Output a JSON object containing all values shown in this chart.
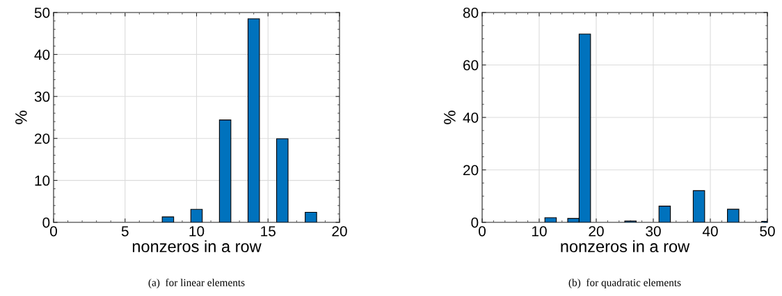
{
  "chart_data": [
    {
      "type": "bar",
      "xlabel": "nonzeros in a row",
      "ylabel": "%",
      "x": [
        8,
        10,
        12,
        14,
        16,
        18
      ],
      "series": [
        {
          "color": "#0072bd",
          "values": [
            1.3,
            3.1,
            24.4,
            48.5,
            19.9,
            2.4
          ]
        }
      ],
      "xlim": [
        0,
        20
      ],
      "xticks": [
        0,
        5,
        10,
        15,
        20
      ],
      "ylim": [
        0,
        50
      ],
      "yticks": [
        0,
        10,
        20,
        30,
        40,
        50
      ],
      "grid": true,
      "annotations": [
        "(a)  for linear elements"
      ]
    },
    {
      "type": "bar",
      "xlabel": "nonzeros in a row",
      "ylabel": "%",
      "x": [
        12,
        16,
        18,
        26,
        32,
        38,
        44,
        50
      ],
      "series": [
        {
          "color": "#0072bd",
          "values": [
            1.8,
            1.5,
            71.8,
            0.5,
            6.2,
            12.1,
            5.0,
            0.4
          ]
        }
      ],
      "xlim": [
        0,
        50
      ],
      "xticks": [
        0,
        10,
        20,
        30,
        40,
        50
      ],
      "ylim": [
        0,
        80
      ],
      "yticks": [
        0,
        20,
        40,
        60,
        80
      ],
      "grid": true,
      "annotations": [
        "(b)  for quadratic elements"
      ]
    }
  ]
}
